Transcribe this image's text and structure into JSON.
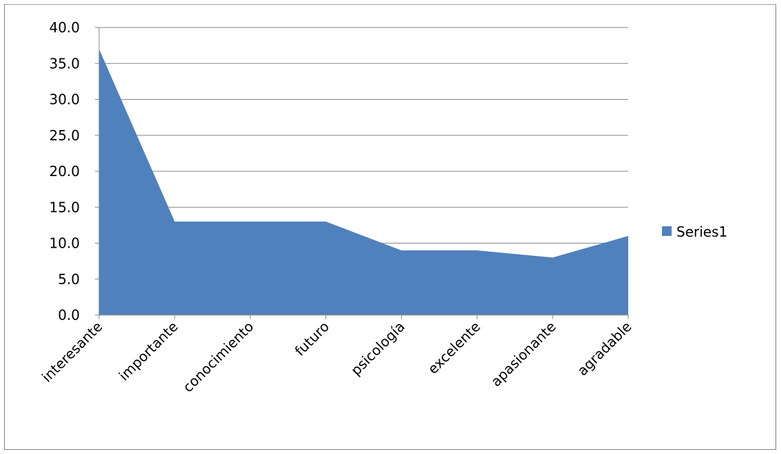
{
  "chart_data": {
    "type": "area",
    "categories": [
      "interesante",
      "importante",
      "conocimiento",
      "futuro",
      "psicología",
      "excelente",
      "apasionante",
      "agradable"
    ],
    "series": [
      {
        "name": "Series1",
        "values": [
          37.0,
          13.0,
          13.0,
          13.0,
          9.0,
          9.0,
          8.0,
          11.0
        ]
      }
    ],
    "y_ticks": [
      "0.0",
      "5.0",
      "10.0",
      "15.0",
      "20.0",
      "25.0",
      "30.0",
      "35.0",
      "40.0"
    ],
    "ylim": [
      0,
      40
    ],
    "grid": "horizontal",
    "legend": "right",
    "colors": {
      "series": "#4f81bd",
      "grid": "#868686",
      "axis": "#868686"
    }
  }
}
